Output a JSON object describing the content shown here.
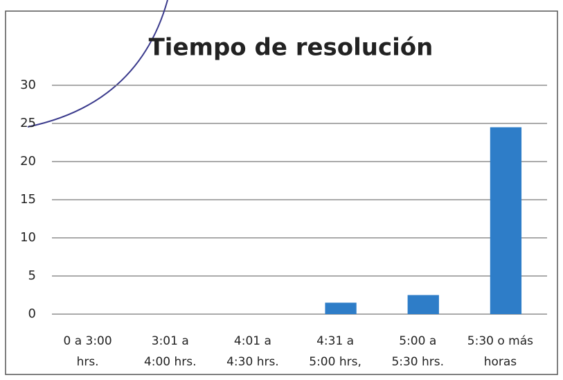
{
  "chart_data": {
    "type": "bar",
    "title": "Tiempo de resolución",
    "categories": [
      [
        "0 a 3:00",
        "hrs."
      ],
      [
        "3:01 a",
        "4:00 hrs."
      ],
      [
        "4:01 a",
        "4:30 hrs."
      ],
      [
        "4:31 a",
        "5:00 hrs,"
      ],
      [
        "5:00 a",
        "5:30 hrs."
      ],
      [
        "5:30 o más",
        "horas"
      ]
    ],
    "values": [
      0,
      0,
      0,
      1.5,
      2.5,
      24.5
    ],
    "color": "#2e7dc8",
    "ylim": [
      0,
      30
    ],
    "yticks": [
      0,
      5,
      10,
      15,
      20,
      25,
      30
    ],
    "grid": true
  }
}
